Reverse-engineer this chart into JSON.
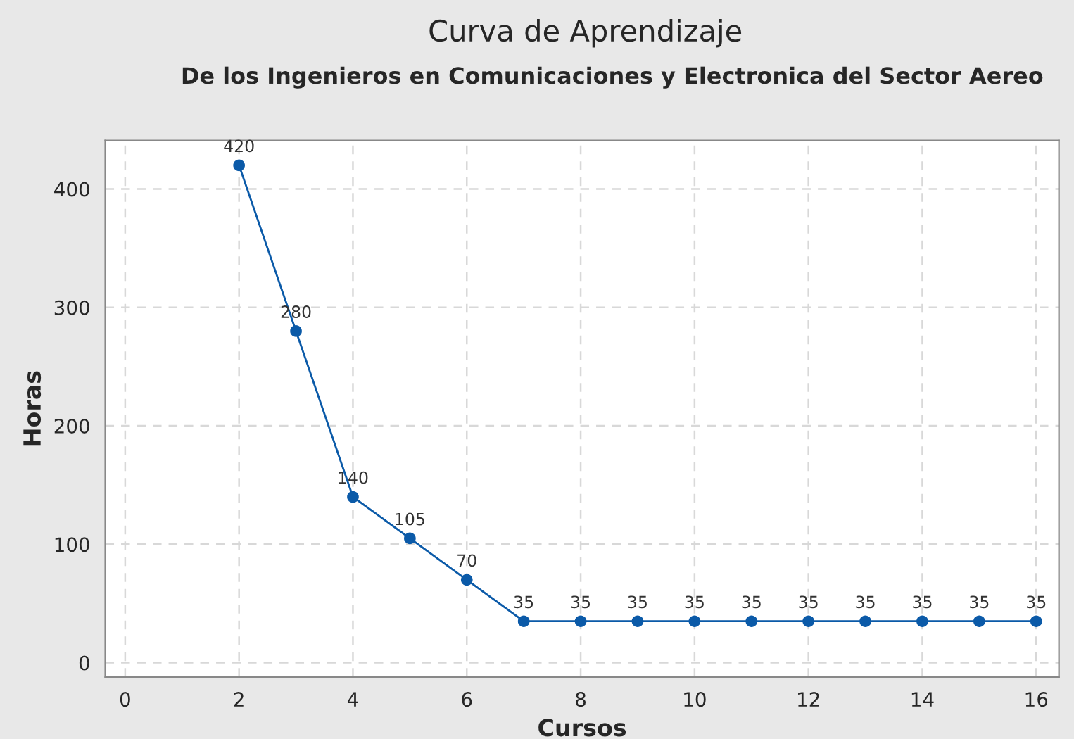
{
  "chart_data": {
    "type": "line",
    "title": "Curva de Aprendizaje",
    "subtitle": "De los Ingenieros en Comunicaciones y Electronica del Sector Aereo",
    "xlabel": "Cursos",
    "ylabel": "Horas",
    "x": [
      2,
      3,
      4,
      5,
      6,
      7,
      8,
      9,
      10,
      11,
      12,
      13,
      14,
      15,
      16
    ],
    "series": [
      {
        "color": "#0b5aa8",
        "values": [
          420,
          280,
          140,
          105,
          70,
          35,
          35,
          35,
          35,
          35,
          35,
          35,
          35,
          35,
          35
        ]
      }
    ],
    "xlim": [
      -0.35,
      16.4
    ],
    "xticks": [
      0,
      2,
      4,
      6,
      8,
      10,
      12,
      14,
      16
    ],
    "ylim": [
      -12,
      441
    ],
    "yticks": [
      0,
      100,
      200,
      300,
      400
    ],
    "grid": true,
    "marker": "circle",
    "line_style": "solid",
    "data_labels": true,
    "legend": false
  }
}
